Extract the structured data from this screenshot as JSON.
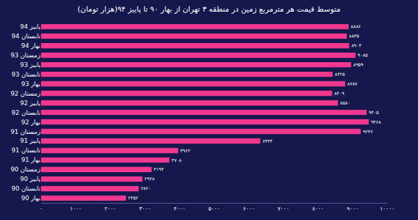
{
  "chart_data": {
    "type": "bar",
    "orientation": "horizontal",
    "title": "متوسط قیمت هر مترمربع زمین در منطقه ۳ تهران از بهار ۹۰ تا پاییز ۹۴(هزار تومان)",
    "categories": [
      "پاییز 94",
      "تابستان 94",
      "بهار 94",
      "زمستان 93",
      "پاییز 93",
      "تابستان 93",
      "بهار 93",
      "زمستان 92",
      "پاییز 92",
      "تابستان 92",
      "بهار 92",
      "زمستان 91",
      "پاییز 91",
      "تابستان 91",
      "بهار 91",
      "زمستان 90",
      "پاییز 90",
      "تابستان 90",
      "بهار 90"
    ],
    "values": [
      8886,
      8835,
      8904,
      9085,
      8959,
      8425,
      8787,
      8409,
      8580,
      9405,
      9468,
      9236,
      6334,
      3962,
      3708,
      3194,
      2928,
      2820,
      2452
    ],
    "value_labels": [
      "۸۸۸۶",
      "۸۸۳۵",
      "۸۹۰۴",
      "۹۰۸۵",
      "۸۹۵۹",
      "۸۴۲۵",
      "۸۷۸۷",
      "۸۴۰۹",
      "۸۵۸۰",
      "۹۴۰۵",
      "۹۴۶۸",
      "۹۲۳۶",
      "۶۳۳۴",
      "۳۹۶۲",
      "۳۷۰۸",
      "۳۱۹۴",
      "۲۹۲۸",
      "۲۸۲۰",
      "۲۴۵۲"
    ],
    "color": "#f2378f",
    "data_labels": true,
    "grid": false,
    "xlim": [
      0,
      10000
    ],
    "xticks": [
      {
        "value": 0,
        "label": "۰"
      },
      {
        "value": 1000,
        "label": "۱۰۰۰"
      },
      {
        "value": 2000,
        "label": "۲۰۰۰"
      },
      {
        "value": 3000,
        "label": "۳۰۰۰"
      },
      {
        "value": 4000,
        "label": "۴۰۰۰"
      },
      {
        "value": 5000,
        "label": "۵۰۰۰"
      },
      {
        "value": 6000,
        "label": "۶۰۰۰"
      },
      {
        "value": 7000,
        "label": "۷۰۰۰"
      },
      {
        "value": 8000,
        "label": "۸۰۰۰"
      },
      {
        "value": 9000,
        "label": "۹۰۰۰"
      },
      {
        "value": 10000,
        "label": "۱۰۰۰۰"
      }
    ]
  }
}
